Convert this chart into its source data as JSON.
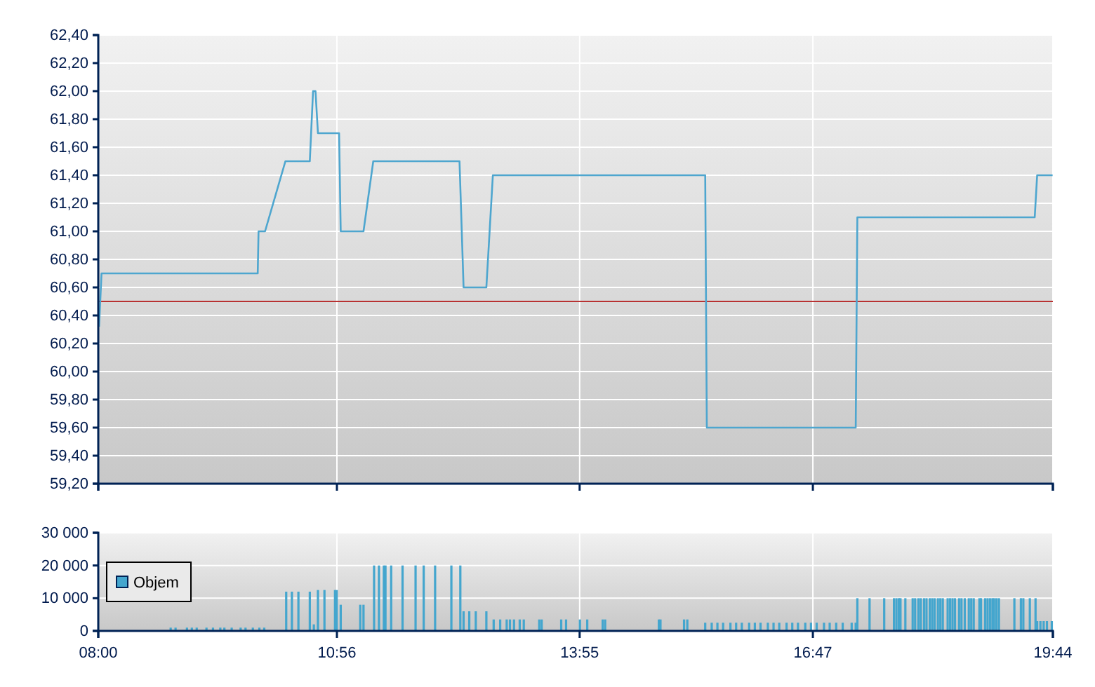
{
  "chart_data": [
    {
      "type": "line",
      "x": [
        8.01,
        8.04,
        9.96,
        9.97,
        10.05,
        10.3,
        10.6,
        10.64,
        10.67,
        10.7,
        10.96,
        10.98,
        11.26,
        11.38,
        12.44,
        12.49,
        12.77,
        12.85,
        15.46,
        15.48,
        17.31,
        17.33,
        19.51,
        19.54,
        19.73
      ],
      "series": [
        {
          "color": "#4ea6cf",
          "values": [
            60.32,
            60.7,
            60.7,
            61.0,
            61.0,
            61.5,
            61.5,
            62.0,
            62.0,
            61.7,
            61.7,
            61.0,
            61.0,
            61.5,
            61.5,
            60.6,
            60.6,
            61.4,
            61.4,
            59.6,
            59.6,
            61.1,
            61.1,
            61.4,
            61.4
          ]
        }
      ],
      "xlim": [
        8,
        19.7333
      ],
      "xticks": [
        {
          "value": 8,
          "label": null
        },
        {
          "value": 10.9333,
          "label": null
        },
        {
          "value": 13.9167,
          "label": null
        },
        {
          "value": 16.7833,
          "label": null
        },
        {
          "value": 19.7333,
          "label": null
        }
      ],
      "ylim": [
        59.2,
        62.4
      ],
      "yticks": [
        {
          "value": 59.2,
          "label": "59,20"
        },
        {
          "value": 59.4,
          "label": "59,40"
        },
        {
          "value": 59.6,
          "label": "59,60"
        },
        {
          "value": 59.8,
          "label": "59,80"
        },
        {
          "value": 60.0,
          "label": "60,00"
        },
        {
          "value": 60.2,
          "label": "60,20"
        },
        {
          "value": 60.4,
          "label": "60,40"
        },
        {
          "value": 60.6,
          "label": "60,60"
        },
        {
          "value": 60.8,
          "label": "60,80"
        },
        {
          "value": 61.0,
          "label": "61,00"
        },
        {
          "value": 61.2,
          "label": "61,20"
        },
        {
          "value": 61.4,
          "label": "61,40"
        },
        {
          "value": 61.6,
          "label": "61,60"
        },
        {
          "value": 61.8,
          "label": "61,80"
        },
        {
          "value": 62.0,
          "label": "62,00"
        },
        {
          "value": 62.2,
          "label": "62,20"
        },
        {
          "value": 62.4,
          "label": "62,40"
        }
      ],
      "ref_lines": [
        {
          "axis": "y",
          "value": 60.5,
          "color": "#b83232"
        }
      ],
      "grid": true,
      "tick_labels": "y"
    },
    {
      "type": "bar",
      "x": [
        8.89,
        8.95,
        9.09,
        9.15,
        9.21,
        9.33,
        9.41,
        9.5,
        9.55,
        9.64,
        9.75,
        9.81,
        9.9,
        9.98,
        10.04,
        10.31,
        10.38,
        10.46,
        10.6,
        10.65,
        10.7,
        10.78,
        10.91,
        10.93,
        10.98,
        11.22,
        11.26,
        11.39,
        11.45,
        11.51,
        11.53,
        11.6,
        11.74,
        11.9,
        12.0,
        12.14,
        12.34,
        12.45,
        12.49,
        12.56,
        12.64,
        12.77,
        12.86,
        12.94,
        13.02,
        13.06,
        13.11,
        13.18,
        13.23,
        13.42,
        13.45,
        13.69,
        13.75,
        13.92,
        14.01,
        14.2,
        14.23,
        14.89,
        14.91,
        15.2,
        15.24,
        15.46,
        15.54,
        15.61,
        15.68,
        15.77,
        15.84,
        15.91,
        16.0,
        16.07,
        16.14,
        16.23,
        16.3,
        16.37,
        16.46,
        16.53,
        16.6,
        16.69,
        16.76,
        16.83,
        16.92,
        16.99,
        17.07,
        17.15,
        17.26,
        17.31,
        17.33,
        17.48,
        17.66,
        17.78,
        17.81,
        17.84,
        17.86,
        17.92,
        18.01,
        18.04,
        18.08,
        18.11,
        18.15,
        18.18,
        18.22,
        18.25,
        18.28,
        18.32,
        18.35,
        18.38,
        18.44,
        18.47,
        18.5,
        18.53,
        18.58,
        18.61,
        18.65,
        18.7,
        18.73,
        18.76,
        18.83,
        18.85,
        18.9,
        18.93,
        18.96,
        18.99,
        19.01,
        19.04,
        19.07,
        19.26,
        19.34,
        19.37,
        19.45,
        19.52,
        19.54,
        19.58,
        19.62,
        19.66,
        19.72
      ],
      "series": [
        {
          "name": "Objem",
          "color": "#44a6ce",
          "values": [
            1000,
            1000,
            1000,
            1000,
            1000,
            1000,
            1000,
            1000,
            1000,
            1000,
            1000,
            1000,
            1000,
            1000,
            1000,
            12000,
            12000,
            12000,
            12000,
            2000,
            12500,
            12500,
            12500,
            12500,
            8000,
            8000,
            8000,
            20000,
            20000,
            20000,
            20000,
            20000,
            20000,
            20000,
            20000,
            20000,
            20000,
            20000,
            6000,
            6000,
            6000,
            6000,
            3500,
            3500,
            3500,
            3500,
            3500,
            3500,
            3500,
            3500,
            3500,
            3500,
            3500,
            3500,
            3500,
            3500,
            3500,
            3500,
            3500,
            3500,
            3500,
            2500,
            2500,
            2500,
            2500,
            2500,
            2500,
            2500,
            2500,
            2500,
            2500,
            2500,
            2500,
            2500,
            2500,
            2500,
            2500,
            2500,
            2500,
            2500,
            2500,
            2500,
            2500,
            2500,
            2500,
            2500,
            10000,
            10000,
            10000,
            10000,
            10000,
            10000,
            10000,
            10000,
            10000,
            10000,
            10000,
            10000,
            10000,
            10000,
            10000,
            10000,
            10000,
            10000,
            10000,
            10000,
            10000,
            10000,
            10000,
            10000,
            10000,
            10000,
            10000,
            10000,
            10000,
            10000,
            10000,
            10000,
            10000,
            10000,
            10000,
            10000,
            10000,
            10000,
            10000,
            10000,
            10000,
            10000,
            10000,
            10000,
            3000,
            3000,
            3000,
            3000,
            3000
          ]
        }
      ],
      "xlim": [
        8,
        19.7333
      ],
      "xticks": [
        {
          "value": 8,
          "label": "08:00"
        },
        {
          "value": 10.9333,
          "label": "10:56"
        },
        {
          "value": 13.9167,
          "label": "13:55"
        },
        {
          "value": 16.7833,
          "label": "16:47"
        },
        {
          "value": 19.7333,
          "label": "19:44"
        }
      ],
      "ylim": [
        0,
        30000
      ],
      "yticks": [
        {
          "value": 0,
          "label": "0"
        },
        {
          "value": 10000,
          "label": "10 000"
        },
        {
          "value": 20000,
          "label": "20 000"
        },
        {
          "value": 30000,
          "label": "30 000"
        }
      ],
      "grid": true,
      "legend": "left"
    }
  ]
}
